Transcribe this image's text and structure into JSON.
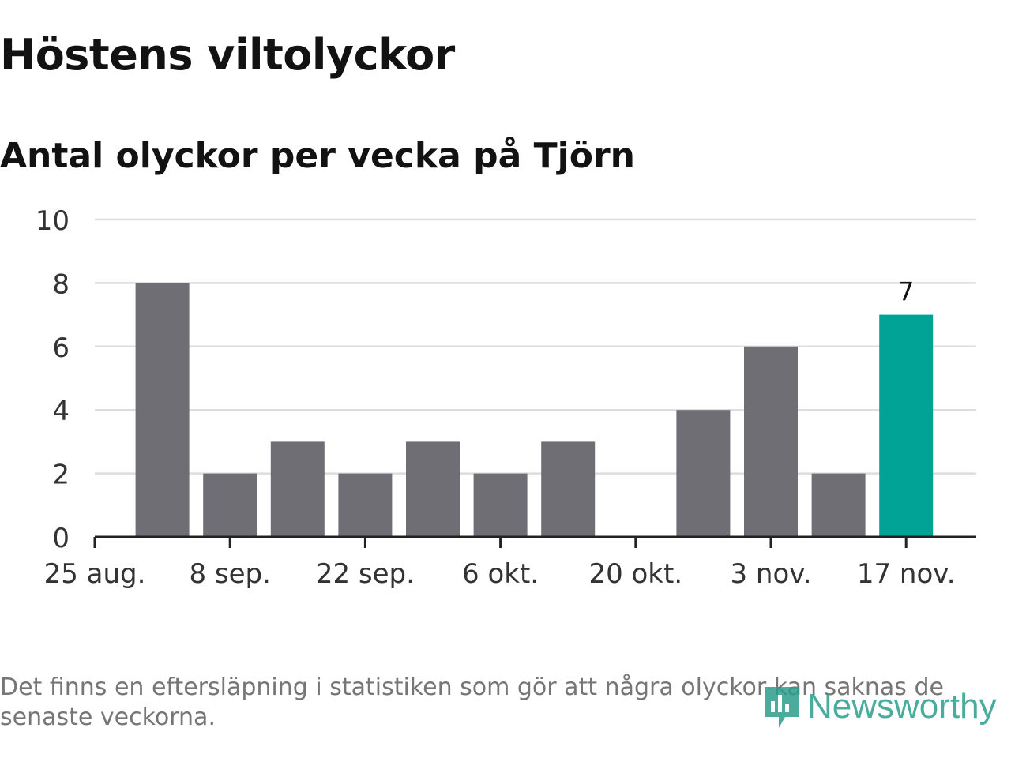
{
  "title": "Höstens viltolyckor",
  "subtitle": "Antal olyckor per vecka på Tjörn",
  "note": "Det finns en eftersläpning i statistiken som gör att några olyckor kan saknas de senaste veckorna.",
  "logo": {
    "name": "Newsworthy",
    "icon": "newsworthy-chart-icon"
  },
  "colors": {
    "bar": "#6f6e74",
    "highlight": "#00a396",
    "grid": "#dddddd",
    "axis": "#222222",
    "text": "#333333"
  },
  "chart_data": {
    "type": "bar",
    "title": "Höstens viltolyckor",
    "subtitle": "Antal olyckor per vecka på Tjörn",
    "x": [
      "25 aug.",
      "1 sep.",
      "8 sep.",
      "15 sep.",
      "22 sep.",
      "29 sep.",
      "6 okt.",
      "13 okt.",
      "20 okt.",
      "27 okt.",
      "3 nov.",
      "10 nov.",
      "17 nov."
    ],
    "values": [
      null,
      8,
      2,
      3,
      2,
      3,
      2,
      3,
      0,
      4,
      6,
      2,
      7
    ],
    "highlight_index": 12,
    "data_labels": [
      {
        "index": 12,
        "text": "7"
      }
    ],
    "x_ticks": [
      "25 aug.",
      "8 sep.",
      "22 sep.",
      "6 okt.",
      "20 okt.",
      "3 nov.",
      "17 nov."
    ],
    "y_ticks": [
      0,
      2,
      4,
      6,
      8,
      10
    ],
    "ylim": [
      0,
      10
    ],
    "grid": true,
    "legend": "none"
  }
}
